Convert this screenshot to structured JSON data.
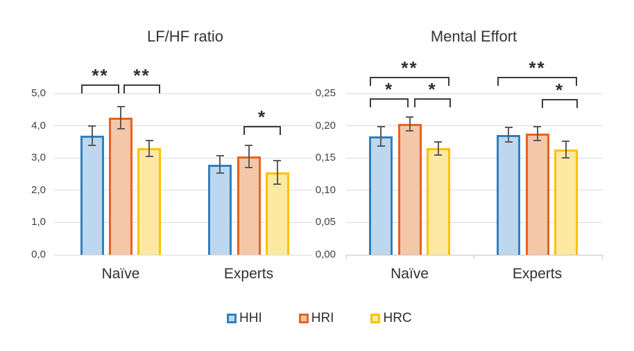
{
  "colors": {
    "hhi_border": "#2E80C3",
    "hhi_fill": "#BDD7EE",
    "hri_border": "#E8621F",
    "hri_fill": "#F4C7A9",
    "hrc_border": "#FFC000",
    "hrc_fill": "#FDE9A2",
    "error_bar": "#595959",
    "gridline": "#D9D9D9",
    "axis_line": "#C4C4C4",
    "bracket": "#3A3A3A",
    "text": "#2F2F2F",
    "tick_text": "#404040"
  },
  "legend": {
    "items": [
      {
        "label": "HHI"
      },
      {
        "label": "HRI"
      },
      {
        "label": "HRC"
      }
    ]
  },
  "chart_data": [
    {
      "type": "bar",
      "title": "LF/HF ratio",
      "categories": [
        "Naïve",
        "Experts"
      ],
      "series": [
        {
          "name": "HHI",
          "values": [
            3.7,
            2.8
          ],
          "errors": [
            0.3,
            0.27
          ]
        },
        {
          "name": "HRI",
          "values": [
            4.25,
            3.05
          ],
          "errors": [
            0.35,
            0.34
          ]
        },
        {
          "name": "HRC",
          "values": [
            3.3,
            2.55
          ],
          "errors": [
            0.25,
            0.36
          ]
        }
      ],
      "ylim": [
        0,
        5
      ],
      "ytick_labels": [
        "0,0",
        "1,0",
        "2,0",
        "3,0",
        "4,0",
        "5,0"
      ],
      "grid": true,
      "legend_position": "bottom",
      "significance": [
        {
          "category": "Naïve",
          "between": [
            "HHI",
            "HRI"
          ],
          "label": "**"
        },
        {
          "category": "Naïve",
          "between": [
            "HRI",
            "HRC"
          ],
          "label": "**"
        },
        {
          "category": "Experts",
          "between": [
            "HRI",
            "HRC"
          ],
          "label": "*"
        }
      ]
    },
    {
      "type": "bar",
      "title": "Mental Effort",
      "categories": [
        "Naïve",
        "Experts"
      ],
      "series": [
        {
          "name": "HHI",
          "values": [
            0.183,
            0.186
          ],
          "errors": [
            0.015,
            0.011
          ]
        },
        {
          "name": "HRI",
          "values": [
            0.203,
            0.188
          ],
          "errors": [
            0.011,
            0.011
          ]
        },
        {
          "name": "HRC",
          "values": [
            0.165,
            0.163
          ],
          "errors": [
            0.01,
            0.013
          ]
        }
      ],
      "ylim": [
        0,
        0.25
      ],
      "ytick_labels": [
        "0,00",
        "0,05",
        "0,10",
        "0,15",
        "0,20",
        "0,25"
      ],
      "grid": true,
      "legend_position": "bottom",
      "significance": [
        {
          "category": "Naïve",
          "between": [
            "HHI",
            "HRC"
          ],
          "label": "**"
        },
        {
          "category": "Naïve",
          "between": [
            "HHI",
            "HRI"
          ],
          "label": "*"
        },
        {
          "category": "Naïve",
          "between": [
            "HRI",
            "HRC"
          ],
          "label": "*"
        },
        {
          "category": "Experts",
          "between": [
            "HHI",
            "HRC"
          ],
          "label": "**"
        },
        {
          "category": "Experts",
          "between": [
            "HRI",
            "HRC"
          ],
          "label": "*"
        }
      ]
    }
  ]
}
